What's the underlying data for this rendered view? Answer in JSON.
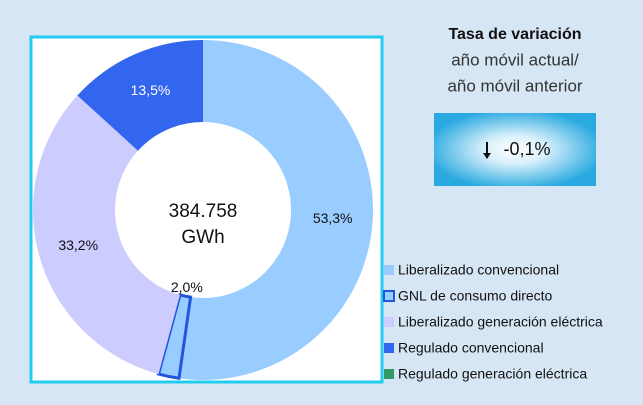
{
  "chart_data": {
    "type": "donut",
    "categories": [
      "Liberalizado convencional",
      "GNL de consumo directo",
      "Liberalizado generación eléctrica",
      "Regulado convencional",
      "Regulado generación eléctrica"
    ],
    "values": [
      53.3,
      2.0,
      33.2,
      13.5,
      0
    ],
    "value_labels": [
      "53,3%",
      "2,0%",
      "33,2%",
      "13,5%",
      null
    ],
    "colors": [
      "#99ccff",
      "#99ccff",
      "#ccccff",
      "#3366ee",
      "#339966"
    ],
    "outlined": [
      false,
      true,
      false,
      false,
      false
    ],
    "center_label": [
      "384.758",
      "GWh"
    ]
  },
  "indicator": {
    "title": "Tasa de variación",
    "subtitle": [
      "año móvil actual/",
      "año móvil anterior"
    ],
    "value": -0.1,
    "value_label": "-0,1%"
  }
}
